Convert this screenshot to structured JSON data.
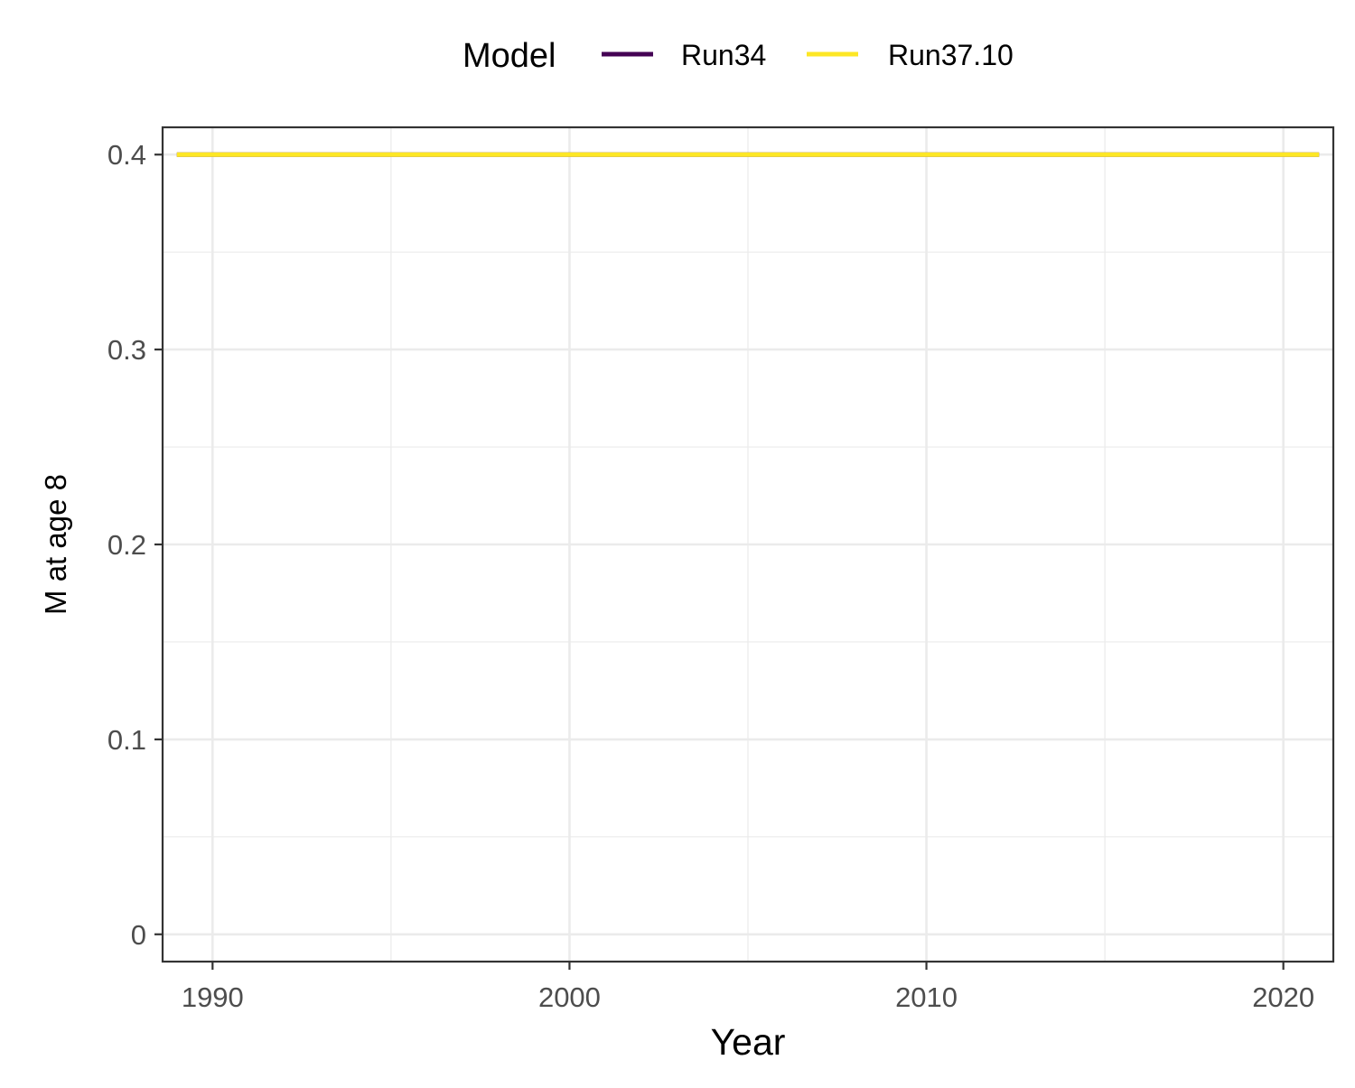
{
  "chart_data": {
    "type": "line",
    "title": "",
    "xlabel": "Year",
    "ylabel": "M at age 8",
    "xlim": [
      1988.6,
      2021.4
    ],
    "ylim": [
      -0.014,
      0.414
    ],
    "x_major_ticks": [
      1990,
      2000,
      2010,
      2020
    ],
    "x_minor_ticks": [
      1995,
      2005,
      2015
    ],
    "y_major_ticks": [
      0,
      0.1,
      0.2,
      0.3,
      0.4
    ],
    "y_minor_ticks": [
      0.05,
      0.15,
      0.25,
      0.35
    ],
    "x_tick_labels": [
      "1990",
      "2000",
      "2010",
      "2020"
    ],
    "y_tick_labels": [
      "0",
      "0.1",
      "0.2",
      "0.3",
      "0.4"
    ],
    "grid": true,
    "legend": {
      "title": "Model",
      "position": "top"
    },
    "series": [
      {
        "name": "Run34",
        "color": "#440154",
        "x": [
          1989,
          1990,
          1991,
          1992,
          1993,
          1994,
          1995,
          1996,
          1997,
          1998,
          1999,
          2000,
          2001,
          2002,
          2003,
          2004,
          2005,
          2006,
          2007,
          2008,
          2009,
          2010,
          2011,
          2012,
          2013,
          2014,
          2015,
          2016,
          2017,
          2018,
          2019,
          2020,
          2021
        ],
        "y": [
          0.4,
          0.4,
          0.4,
          0.4,
          0.4,
          0.4,
          0.4,
          0.4,
          0.4,
          0.4,
          0.4,
          0.4,
          0.4,
          0.4,
          0.4,
          0.4,
          0.4,
          0.4,
          0.4,
          0.4,
          0.4,
          0.4,
          0.4,
          0.4,
          0.4,
          0.4,
          0.4,
          0.4,
          0.4,
          0.4,
          0.4,
          0.4,
          0.4
        ]
      },
      {
        "name": "Run37.10",
        "color": "#FDE725",
        "x": [
          1989,
          1990,
          1991,
          1992,
          1993,
          1994,
          1995,
          1996,
          1997,
          1998,
          1999,
          2000,
          2001,
          2002,
          2003,
          2004,
          2005,
          2006,
          2007,
          2008,
          2009,
          2010,
          2011,
          2012,
          2013,
          2014,
          2015,
          2016,
          2017,
          2018,
          2019,
          2020,
          2021
        ],
        "y": [
          0.4,
          0.4,
          0.4,
          0.4,
          0.4,
          0.4,
          0.4,
          0.4,
          0.4,
          0.4,
          0.4,
          0.4,
          0.4,
          0.4,
          0.4,
          0.4,
          0.4,
          0.4,
          0.4,
          0.4,
          0.4,
          0.4,
          0.4,
          0.4,
          0.4,
          0.4,
          0.4,
          0.4,
          0.4,
          0.4,
          0.4,
          0.4,
          0.4
        ]
      }
    ]
  }
}
